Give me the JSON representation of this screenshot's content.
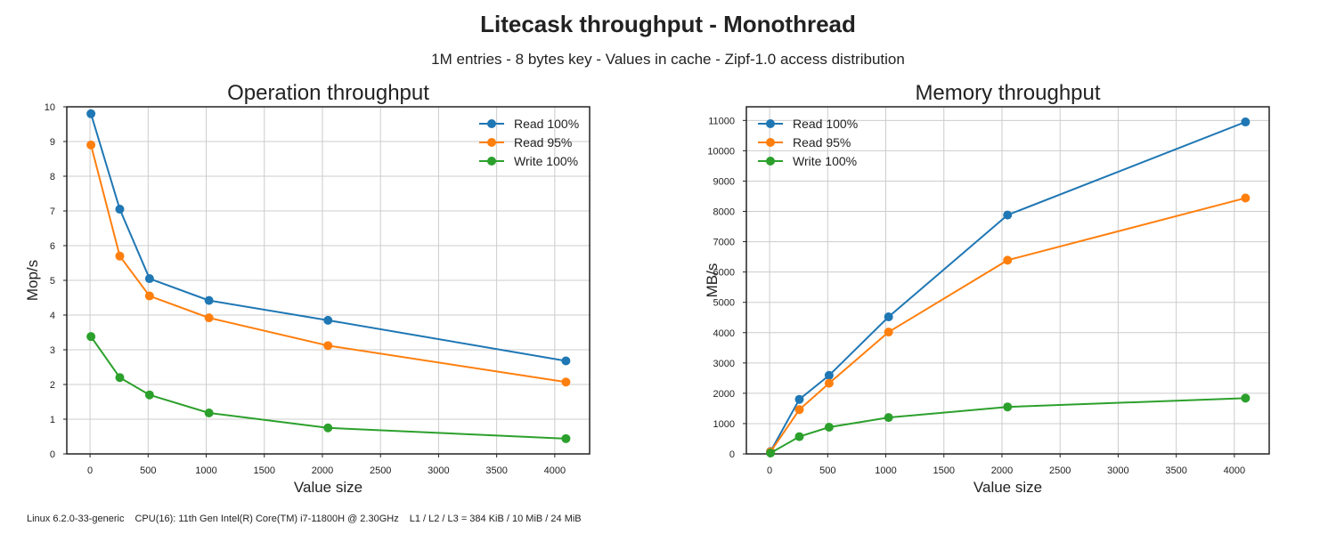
{
  "title": "Litecask throughput - Monothread",
  "subtitle": "1M entries - 8 bytes key - Values in cache - Zipf-1.0 access distribution",
  "footer": {
    "os": "Linux 6.2.0-33-generic",
    "cpu": "CPU(16): 11th Gen Intel(R) Core(TM) i7-11800H @ 2.30GHz",
    "cache": "L1 / L2 / L3 = 384 KiB / 10 MiB / 24 MiB"
  },
  "colors": {
    "read100": "#1f77b4",
    "read95": "#ff7f0e",
    "write100": "#2ca02c"
  },
  "chart_data": [
    {
      "type": "line",
      "title": "Operation throughput",
      "xlabel": "Value size",
      "ylabel": "Mop/s",
      "xlim": [
        -200,
        4300
      ],
      "ylim": [
        0,
        10
      ],
      "xticks": [
        0,
        500,
        1000,
        1500,
        2000,
        2500,
        3000,
        3500,
        4000
      ],
      "yticks": [
        0,
        1,
        2,
        3,
        4,
        5,
        6,
        7,
        8,
        9,
        10
      ],
      "grid": true,
      "legend": "top-right",
      "x": [
        8,
        256,
        512,
        1024,
        2048,
        4096
      ],
      "series": [
        {
          "name": "Read 100%",
          "color": "#1f77b4",
          "values": [
            9.8,
            7.05,
            5.05,
            4.42,
            3.85,
            2.68
          ]
        },
        {
          "name": "Read 95%",
          "color": "#ff7f0e",
          "values": [
            8.9,
            5.7,
            4.55,
            3.92,
            3.12,
            2.07
          ]
        },
        {
          "name": "Write 100%",
          "color": "#2ca02c",
          "values": [
            3.38,
            2.2,
            1.7,
            1.18,
            0.75,
            0.44
          ]
        }
      ]
    },
    {
      "type": "line",
      "title": "Memory throughput",
      "xlabel": "Value size",
      "ylabel": "MB/s",
      "xlim": [
        -200,
        4300
      ],
      "ylim": [
        0,
        11450
      ],
      "xticks": [
        0,
        500,
        1000,
        1500,
        2000,
        2500,
        3000,
        3500,
        4000
      ],
      "yticks": [
        0,
        1000,
        2000,
        3000,
        4000,
        5000,
        6000,
        7000,
        8000,
        9000,
        10000,
        11000
      ],
      "grid": true,
      "legend": "top-left",
      "x": [
        8,
        256,
        512,
        1024,
        2048,
        4096
      ],
      "series": [
        {
          "name": "Read 100%",
          "color": "#1f77b4",
          "values": [
            80,
            1800,
            2590,
            4520,
            7880,
            10950
          ]
        },
        {
          "name": "Read 95%",
          "color": "#ff7f0e",
          "values": [
            70,
            1460,
            2330,
            4020,
            6390,
            8440
          ]
        },
        {
          "name": "Write 100%",
          "color": "#2ca02c",
          "values": [
            30,
            570,
            880,
            1200,
            1550,
            1840
          ]
        }
      ]
    }
  ]
}
